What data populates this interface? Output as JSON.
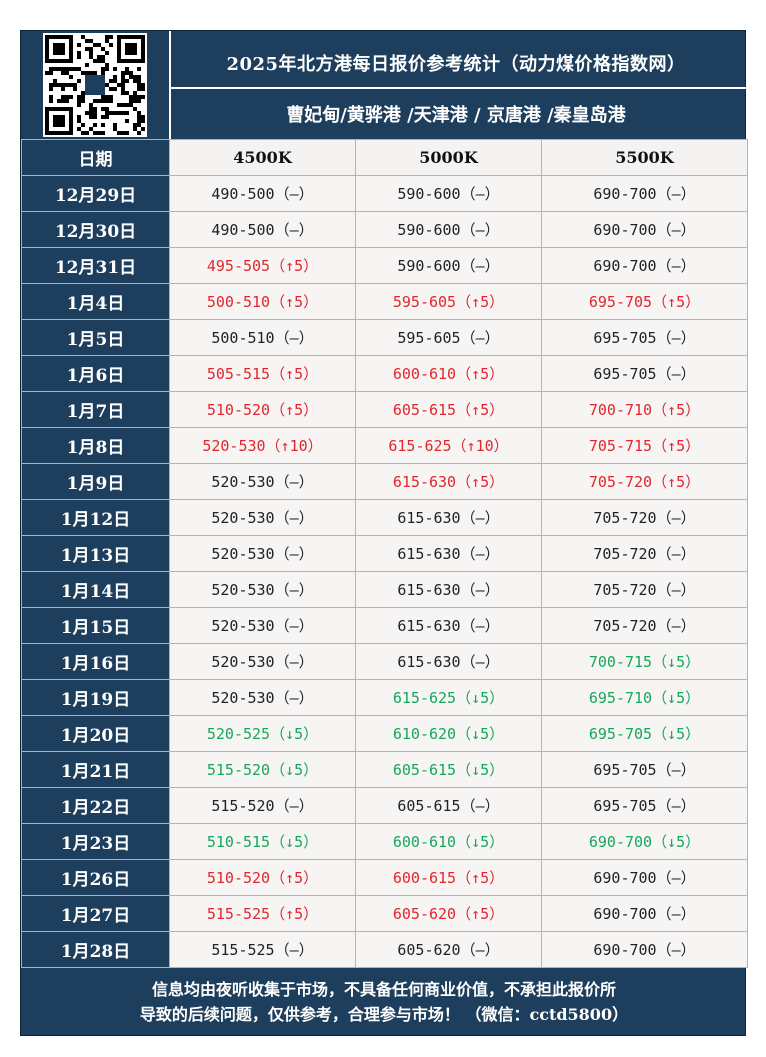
{
  "title": "2025年北方港每日报价参考统计（动力煤价格指数网）",
  "ports": "曹妃甸/黄骅港 /天津港 / 京唐港 /秦皇岛港",
  "headers": {
    "date": "日期",
    "col1": "4500K",
    "col2": "5000K",
    "col3": "5500K"
  },
  "rows": [
    {
      "date": "12月29日",
      "c1": "490-500（—）",
      "c2": "590-600（—）",
      "c3": "690-700（—）",
      "t1": "flat",
      "t2": "flat",
      "t3": "flat"
    },
    {
      "date": "12月30日",
      "c1": "490-500（—）",
      "c2": "590-600（—）",
      "c3": "690-700（—）",
      "t1": "flat",
      "t2": "flat",
      "t3": "flat"
    },
    {
      "date": "12月31日",
      "c1": "495-505（↑5）",
      "c2": "590-600（—）",
      "c3": "690-700（—）",
      "t1": "up",
      "t2": "flat",
      "t3": "flat"
    },
    {
      "date": "1月4日",
      "c1": "500-510（↑5）",
      "c2": "595-605（↑5）",
      "c3": "695-705（↑5）",
      "t1": "up",
      "t2": "up",
      "t3": "up"
    },
    {
      "date": "1月5日",
      "c1": "500-510（—）",
      "c2": "595-605（—）",
      "c3": "695-705（—）",
      "t1": "flat",
      "t2": "flat",
      "t3": "flat"
    },
    {
      "date": "1月6日",
      "c1": "505-515（↑5）",
      "c2": "600-610（↑5）",
      "c3": "695-705（—）",
      "t1": "up",
      "t2": "up",
      "t3": "flat"
    },
    {
      "date": "1月7日",
      "c1": "510-520（↑5）",
      "c2": "605-615（↑5）",
      "c3": "700-710（↑5）",
      "t1": "up",
      "t2": "up",
      "t3": "up"
    },
    {
      "date": "1月8日",
      "c1": "520-530（↑10）",
      "c2": "615-625（↑10）",
      "c3": "705-715（↑5）",
      "t1": "up",
      "t2": "up",
      "t3": "up"
    },
    {
      "date": "1月9日",
      "c1": "520-530（—）",
      "c2": "615-630（↑5）",
      "c3": "705-720（↑5）",
      "t1": "flat",
      "t2": "up",
      "t3": "up"
    },
    {
      "date": "1月12日",
      "c1": "520-530（—）",
      "c2": "615-630（—）",
      "c3": "705-720（—）",
      "t1": "flat",
      "t2": "flat",
      "t3": "flat"
    },
    {
      "date": "1月13日",
      "c1": "520-530（—）",
      "c2": "615-630（—）",
      "c3": "705-720（—）",
      "t1": "flat",
      "t2": "flat",
      "t3": "flat"
    },
    {
      "date": "1月14日",
      "c1": "520-530（—）",
      "c2": "615-630（—）",
      "c3": "705-720（—）",
      "t1": "flat",
      "t2": "flat",
      "t3": "flat"
    },
    {
      "date": "1月15日",
      "c1": "520-530（—）",
      "c2": "615-630（—）",
      "c3": "705-720（—）",
      "t1": "flat",
      "t2": "flat",
      "t3": "flat"
    },
    {
      "date": "1月16日",
      "c1": "520-530（—）",
      "c2": "615-630（—）",
      "c3": "700-715（↓5）",
      "t1": "flat",
      "t2": "flat",
      "t3": "down"
    },
    {
      "date": "1月19日",
      "c1": "520-530（—）",
      "c2": "615-625（↓5）",
      "c3": "695-710（↓5）",
      "t1": "flat",
      "t2": "down",
      "t3": "down"
    },
    {
      "date": "1月20日",
      "c1": "520-525（↓5）",
      "c2": "610-620（↓5）",
      "c3": "695-705（↓5）",
      "t1": "down",
      "t2": "down",
      "t3": "down"
    },
    {
      "date": "1月21日",
      "c1": "515-520（↓5）",
      "c2": "605-615（↓5）",
      "c3": "695-705（—）",
      "t1": "down",
      "t2": "down",
      "t3": "flat"
    },
    {
      "date": "1月22日",
      "c1": "515-520（—）",
      "c2": "605-615（—）",
      "c3": "695-705（—）",
      "t1": "flat",
      "t2": "flat",
      "t3": "flat"
    },
    {
      "date": "1月23日",
      "c1": "510-515（↓5）",
      "c2": "600-610（↓5）",
      "c3": "690-700（↓5）",
      "t1": "down",
      "t2": "down",
      "t3": "down"
    },
    {
      "date": "1月26日",
      "c1": "510-520（↑5）",
      "c2": "600-615（↑5）",
      "c3": "690-700（—）",
      "t1": "up",
      "t2": "up",
      "t3": "flat"
    },
    {
      "date": "1月27日",
      "c1": "515-525（↑5）",
      "c2": "605-620（↑5）",
      "c3": "690-700（—）",
      "t1": "up",
      "t2": "up",
      "t3": "flat"
    },
    {
      "date": "1月28日",
      "c1": "515-525（—）",
      "c2": "605-620（—）",
      "c3": "690-700（—）",
      "t1": "flat",
      "t2": "flat",
      "t3": "flat"
    }
  ],
  "footer": {
    "line1": "信息均由夜听收集于市场，不具备任何商业价值，不承担此报价所",
    "line2": "导致的后续问题，仅供参考，合理参与市场！ （微信：cctd5800）"
  },
  "colors": {
    "header_bg": "#1d3e5c",
    "cell_bg": "#f7f4f4",
    "up": "#e1262d",
    "down": "#13a85a",
    "flat": "#222222"
  }
}
